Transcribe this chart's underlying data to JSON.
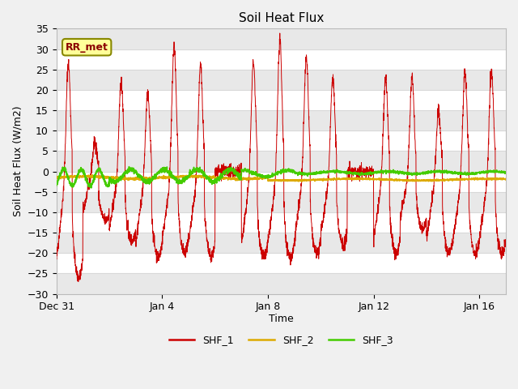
{
  "title": "Soil Heat Flux",
  "ylabel": "Soil Heat Flux (W/m2)",
  "xlabel": "Time",
  "ylim": [
    -30,
    35
  ],
  "yticks": [
    -30,
    -25,
    -20,
    -15,
    -10,
    -5,
    0,
    5,
    10,
    15,
    20,
    25,
    30,
    35
  ],
  "xtick_labels": [
    "Dec 31",
    "Jan 4",
    "Jan 8",
    "Jan 12",
    "Jan 16"
  ],
  "fig_bg_color": "#f0f0f0",
  "plot_bg_color": "#ffffff",
  "grid_color": "#d8d8d8",
  "shf1_color": "#cc0000",
  "shf2_color": "#ddaa00",
  "shf3_color": "#44cc00",
  "annotation_text": "RR_met",
  "annotation_bg": "#ffff99",
  "annotation_border": "#888800",
  "legend_labels": [
    "SHF_1",
    "SHF_2",
    "SHF_3"
  ],
  "n_points": 3000,
  "seed": 42,
  "xlim": [
    0,
    17
  ],
  "xtick_pos": [
    0,
    4,
    8,
    12,
    16
  ]
}
